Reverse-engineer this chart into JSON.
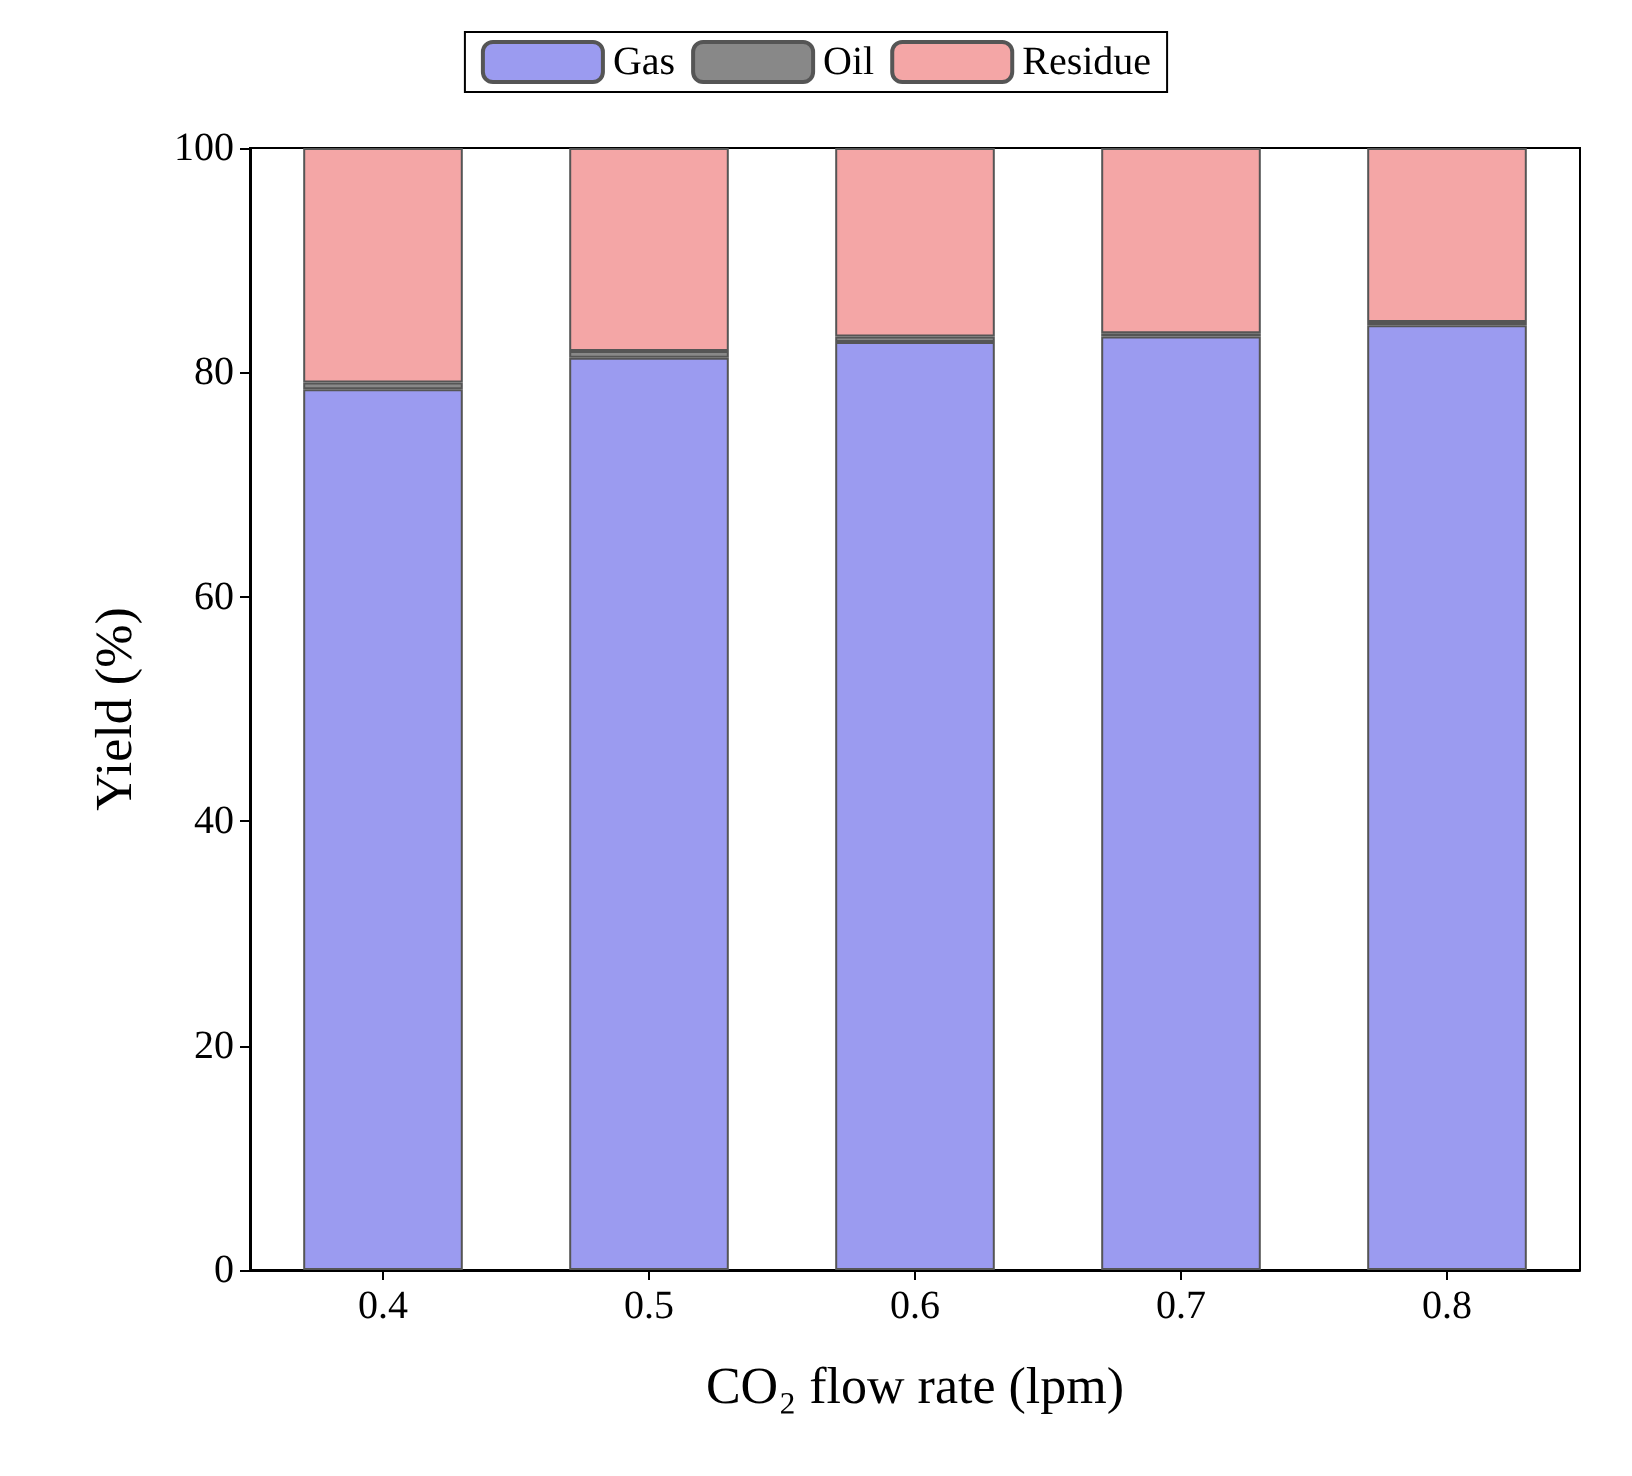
{
  "chart_data": {
    "type": "bar",
    "stacked": true,
    "xlabel": "CO₂ flow rate (lpm)",
    "ylabel": "Yield (%)",
    "categories": [
      "0.4",
      "0.5",
      "0.6",
      "0.7",
      "0.8"
    ],
    "series": [
      {
        "name": "Gas",
        "color": "#9b9bf0",
        "values": [
          78.5,
          81.3,
          82.7,
          83.2,
          84.2
        ]
      },
      {
        "name": "Oil",
        "color": "#888888",
        "values": [
          0.6,
          0.6,
          0.5,
          0.3,
          0.3
        ]
      },
      {
        "name": "Residue",
        "color": "#f4a6a6",
        "values": [
          20.9,
          18.1,
          16.8,
          16.5,
          15.5
        ]
      }
    ],
    "ylim": [
      0,
      100
    ],
    "yticks": [
      0,
      20,
      40,
      60,
      80,
      100
    ],
    "grid": false,
    "legend": "top"
  }
}
